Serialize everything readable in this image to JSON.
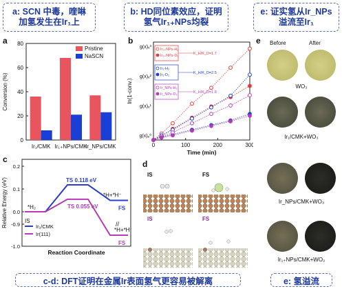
{
  "headers": {
    "a": {
      "line1": "a: SCN 中毒，喹啉",
      "line2": "加氢发生在Ir₁上"
    },
    "b": {
      "line1": "b: HD同位素效应，证明",
      "line2": "氢气Ir₁₊NPs均裂"
    },
    "e": {
      "line1": "e: 证实氢从Ir_NPs",
      "line2": "溢流至Ir₁"
    },
    "cd_footer": "c-d: DFT证明在金属Ir表面氢气更容易被解离",
    "e_footer": "e: 氢溢流"
  },
  "panel_letters": {
    "a": "a",
    "b": "b",
    "c": "c",
    "d": "d",
    "e": "e"
  },
  "chart_a": {
    "type": "bar",
    "categories": [
      "Ir₁/CMK",
      "Ir₁₊NPs/CMK",
      "Ir_NPs/CMK"
    ],
    "series": [
      {
        "name": "Pristine",
        "values": [
          36,
          68,
          37
        ],
        "color": "#e8555e"
      },
      {
        "name": "NaSCN",
        "values": [
          8,
          21,
          23
        ],
        "color": "#1a3fd6"
      }
    ],
    "ylabel": "Conversion (%)",
    "ylim": [
      0,
      80
    ],
    "yticks": [
      "0",
      "20",
      "40",
      "60",
      "80"
    ]
  },
  "chart_b": {
    "type": "scatter",
    "xlabel": "Time (min)",
    "ylabel": "ln(1-conv.)",
    "xlim": [
      0,
      300
    ],
    "xticks": [
      "0",
      "100",
      "200",
      "300"
    ],
    "ytick_labels": [
      "g(x)ₑ⁰",
      "g(x)ₑ¹",
      "g(x)ₑ²",
      "g(x)ₑ³"
    ],
    "series": [
      {
        "name": "Ir₁₊NPs-H₂",
        "color": "#e23a3a",
        "filled": false,
        "x": [
          0,
          25,
          60,
          120,
          180,
          240,
          300
        ],
        "y": [
          0.0,
          0.14,
          0.36,
          0.78,
          1.12,
          1.55,
          1.96
        ]
      },
      {
        "name": "Ir₁₊NPs-D₂",
        "color": "#e23a3a",
        "filled": true,
        "x": [
          0,
          25,
          60,
          120,
          180,
          240,
          300
        ],
        "y": [
          0.0,
          0.08,
          0.24,
          0.48,
          0.72,
          0.92,
          1.16
        ]
      },
      {
        "name": "Ir₁-H₂",
        "color": "#1a3fd6",
        "filled": false,
        "x": [
          0,
          25,
          60,
          120,
          180,
          240,
          300
        ],
        "y": [
          0.0,
          0.1,
          0.22,
          0.46,
          0.7,
          0.95,
          1.4
        ]
      },
      {
        "name": "Ir₁-D₂",
        "color": "#1a3fd6",
        "filled": true,
        "x": [
          0,
          25,
          60,
          120,
          180,
          240,
          300
        ],
        "y": [
          0.0,
          0.06,
          0.12,
          0.22,
          0.32,
          0.42,
          0.56
        ]
      },
      {
        "name": "Ir_NPs-H₂",
        "color": "#b43bb4",
        "filled": false,
        "x": [
          0,
          25,
          60,
          120,
          180,
          240,
          300
        ],
        "y": [
          0.0,
          0.07,
          0.16,
          0.36,
          0.56,
          0.74,
          0.96
        ]
      },
      {
        "name": "Ir_NPs-D₂",
        "color": "#b43bb4",
        "filled": true,
        "x": [
          0,
          25,
          60,
          120,
          180,
          240,
          300
        ],
        "y": [
          0.0,
          0.05,
          0.1,
          0.2,
          0.3,
          0.4,
          0.52
        ]
      }
    ],
    "annotations": [
      "K_H/K_D=1.7",
      "K_H/K_D=2.5",
      "K_H/K_D=1.8"
    ]
  },
  "chart_c": {
    "type": "line",
    "xlabel": "Reaction Coordinate",
    "ylabel": "Relative Energy (eV)",
    "yticks": [
      "-1.0",
      "-0.9",
      "0.0",
      "0.1",
      "0.2"
    ],
    "legend": [
      "Ir₁/CMK",
      "Ir(111)"
    ],
    "labels": {
      "h2": "*H₂",
      "is": "IS",
      "ts1": "TS  0.118 eV",
      "ts2": "TS  0.055 eV",
      "fs1": "FS",
      "fs2": "FS",
      "hh1": "*H+*H⁻",
      "hh2": "*H+*H"
    },
    "series": [
      {
        "name": "Ir₁/CMK",
        "color": "#2a3fc8",
        "values": [
          0.0,
          0.118,
          0.05
        ]
      },
      {
        "name": "Ir(111)",
        "color": "#b43bb4",
        "values": [
          0.0,
          0.055,
          -0.95
        ]
      }
    ]
  },
  "panel_d": {
    "is_top": "IS",
    "fs_top": "FS",
    "is_bot": "IS",
    "fs_bot": "FS"
  },
  "panel_e": {
    "before": "Before",
    "after": "After",
    "rows": [
      "WO₃",
      "Ir₁/CMK+WO₃",
      "Ir_NPs/CMK+WO₃",
      "Ir₁₊NPs/CMK+WO₃"
    ]
  }
}
